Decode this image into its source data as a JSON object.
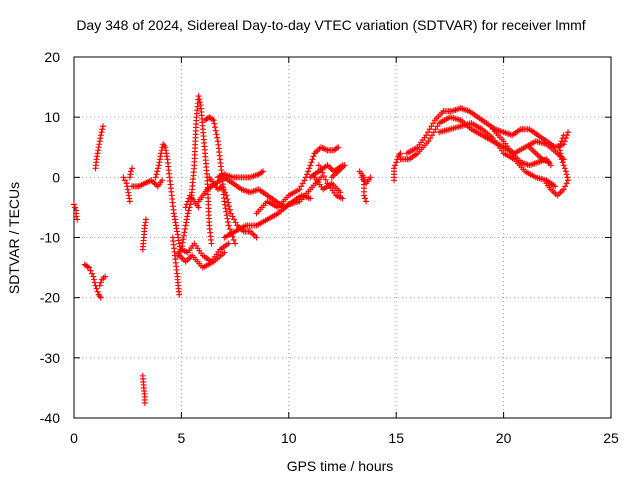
{
  "chart_data": {
    "type": "scatter",
    "title": "Day 348 of 2024, Sidereal Day-to-day VTEC variation (SDTVAR) for receiver lmmf",
    "xlabel": "GPS time / hours",
    "ylabel": "SDTVAR / TECUs",
    "xlim": [
      0,
      25
    ],
    "ylim": [
      -40,
      20
    ],
    "xticks": [
      0,
      5,
      10,
      15,
      20,
      25
    ],
    "yticks": [
      -40,
      -30,
      -20,
      -10,
      0,
      10,
      20
    ],
    "grid": true,
    "marker": "+",
    "color": "#ff0000",
    "series": [
      {
        "name": "tracks",
        "tracks": [
          [
            [
              0.0,
              -4.5
            ],
            [
              0.1,
              -5.5
            ],
            [
              0.1,
              -6.5
            ],
            [
              0.15,
              -7
            ]
          ],
          [
            [
              0.5,
              -14.5
            ],
            [
              0.7,
              -15
            ],
            [
              0.9,
              -16.5
            ],
            [
              1.0,
              -18
            ],
            [
              1.15,
              -19.5
            ],
            [
              1.25,
              -20
            ]
          ],
          [
            [
              1.2,
              -18
            ],
            [
              1.3,
              -17
            ],
            [
              1.45,
              -16.5
            ]
          ],
          [
            [
              1.0,
              1.5
            ],
            [
              1.05,
              3
            ],
            [
              1.15,
              5
            ],
            [
              1.25,
              7
            ],
            [
              1.35,
              8.5
            ]
          ],
          [
            [
              2.3,
              0
            ],
            [
              2.45,
              -1
            ],
            [
              2.5,
              -2
            ],
            [
              2.6,
              -4
            ]
          ],
          [
            [
              2.6,
              0
            ],
            [
              2.65,
              1
            ],
            [
              2.7,
              1.5
            ]
          ],
          [
            [
              2.7,
              -1.5
            ],
            [
              3.0,
              -1.5
            ],
            [
              3.3,
              -1
            ],
            [
              3.6,
              -0.5
            ],
            [
              3.9,
              -1.5
            ],
            [
              4.1,
              -0.5
            ]
          ],
          [
            [
              3.2,
              -12
            ],
            [
              3.25,
              -10
            ],
            [
              3.3,
              -8
            ],
            [
              3.35,
              -7
            ]
          ],
          [
            [
              3.2,
              -33
            ],
            [
              3.25,
              -35
            ],
            [
              3.3,
              -36.5
            ],
            [
              3.3,
              -37.5
            ]
          ],
          [
            [
              3.8,
              0
            ],
            [
              3.95,
              2
            ],
            [
              4.05,
              4
            ],
            [
              4.15,
              5.5
            ],
            [
              4.25,
              5
            ],
            [
              4.35,
              3
            ],
            [
              4.45,
              0
            ],
            [
              4.55,
              -3
            ],
            [
              4.65,
              -6
            ],
            [
              4.75,
              -8
            ],
            [
              4.85,
              -10
            ],
            [
              4.95,
              -12
            ]
          ],
          [
            [
              4.6,
              -10
            ],
            [
              4.7,
              -13
            ],
            [
              4.8,
              -16
            ],
            [
              4.85,
              -18
            ],
            [
              4.9,
              -19.5
            ]
          ],
          [
            [
              4.8,
              -13
            ],
            [
              5.0,
              -12
            ],
            [
              5.3,
              -12.5
            ],
            [
              5.6,
              -11
            ],
            [
              6.0,
              -13
            ],
            [
              6.4,
              -14
            ],
            [
              6.8,
              -12
            ],
            [
              7.2,
              -11
            ]
          ],
          [
            [
              4.9,
              -13
            ],
            [
              5.2,
              -14
            ],
            [
              5.5,
              -13
            ],
            [
              6.0,
              -15
            ],
            [
              6.5,
              -14
            ],
            [
              7.0,
              -12.5
            ]
          ],
          [
            [
              5.0,
              -12
            ],
            [
              5.2,
              -8
            ],
            [
              5.3,
              -6
            ],
            [
              5.45,
              -4
            ],
            [
              5.5,
              -2
            ],
            [
              5.6,
              2
            ],
            [
              5.65,
              6
            ],
            [
              5.7,
              10
            ],
            [
              5.8,
              13.5
            ],
            [
              5.9,
              12
            ],
            [
              6.0,
              8
            ],
            [
              6.1,
              4
            ],
            [
              6.2,
              0
            ],
            [
              6.25,
              -4
            ],
            [
              6.3,
              -8
            ],
            [
              6.4,
              -11
            ]
          ],
          [
            [
              5.2,
              -5
            ],
            [
              5.4,
              -3
            ],
            [
              5.6,
              -4
            ],
            [
              5.8,
              -5
            ]
          ],
          [
            [
              5.8,
              -4
            ],
            [
              6.0,
              -3
            ],
            [
              6.2,
              -2
            ],
            [
              6.6,
              -1
            ],
            [
              7.0,
              0
            ],
            [
              7.4,
              -1
            ],
            [
              7.8,
              -2
            ],
            [
              8.2,
              -2.5
            ],
            [
              8.6,
              -2
            ],
            [
              9.0,
              -3
            ],
            [
              9.4,
              -4
            ],
            [
              9.8,
              -5
            ],
            [
              10.2,
              -4
            ],
            [
              10.6,
              -3
            ],
            [
              11.0,
              -3.5
            ]
          ],
          [
            [
              6.1,
              9.5
            ],
            [
              6.3,
              10
            ],
            [
              6.5,
              9.5
            ],
            [
              6.7,
              6
            ],
            [
              6.8,
              3
            ],
            [
              6.9,
              0
            ],
            [
              7.0,
              -4
            ],
            [
              7.2,
              -8
            ],
            [
              7.5,
              -11
            ]
          ],
          [
            [
              6.3,
              0
            ],
            [
              6.5,
              -1
            ],
            [
              6.7,
              -2
            ],
            [
              6.9,
              -1.5
            ],
            [
              7.1,
              -3
            ],
            [
              7.3,
              -6
            ],
            [
              7.6,
              -8
            ],
            [
              7.9,
              -9
            ],
            [
              8.2,
              -9
            ],
            [
              8.5,
              -10
            ]
          ],
          [
            [
              6.7,
              0
            ],
            [
              7.0,
              0.5
            ],
            [
              7.4,
              0
            ],
            [
              7.8,
              0
            ],
            [
              8.2,
              0
            ],
            [
              8.6,
              0.5
            ],
            [
              8.8,
              1
            ]
          ],
          [
            [
              7.0,
              -10
            ],
            [
              7.5,
              -9
            ],
            [
              8.0,
              -8
            ],
            [
              8.5,
              -8
            ],
            [
              9.0,
              -7
            ],
            [
              9.5,
              -6
            ],
            [
              10.0,
              -4.5
            ],
            [
              10.5,
              -4
            ],
            [
              11.0,
              -2
            ],
            [
              11.5,
              0
            ]
          ],
          [
            [
              8.5,
              -6
            ],
            [
              9.0,
              -4
            ],
            [
              9.5,
              -5
            ],
            [
              10.0,
              -3
            ],
            [
              10.5,
              -2
            ],
            [
              10.8,
              0
            ],
            [
              11.0,
              2
            ],
            [
              11.2,
              4
            ],
            [
              11.5,
              5
            ],
            [
              11.8,
              4.5
            ],
            [
              12.1,
              4.5
            ],
            [
              12.3,
              5
            ]
          ],
          [
            [
              11.0,
              0
            ],
            [
              11.4,
              1
            ],
            [
              11.8,
              2
            ],
            [
              12.1,
              1
            ],
            [
              12.5,
              2
            ]
          ],
          [
            [
              11.2,
              0
            ],
            [
              11.6,
              -2
            ],
            [
              12.0,
              -1
            ],
            [
              12.4,
              -2.5
            ]
          ],
          [
            [
              11.4,
              2
            ],
            [
              11.8,
              -1
            ],
            [
              12.2,
              -3
            ],
            [
              12.5,
              -3.5
            ]
          ],
          [
            [
              12.0,
              0
            ],
            [
              12.3,
              1
            ],
            [
              12.6,
              2
            ]
          ],
          [
            [
              13.3,
              1
            ],
            [
              13.5,
              0
            ],
            [
              13.5,
              -3
            ],
            [
              13.6,
              -4
            ]
          ],
          [
            [
              13.4,
              0
            ],
            [
              13.6,
              -1
            ],
            [
              13.8,
              0
            ]
          ],
          [
            [
              14.9,
              -0.5
            ],
            [
              14.9,
              1.5
            ],
            [
              15.0,
              2.5
            ],
            [
              15.1,
              3.5
            ],
            [
              15.2,
              4
            ]
          ],
          [
            [
              15.2,
              3
            ],
            [
              15.6,
              3
            ],
            [
              16.0,
              4
            ],
            [
              16.5,
              6
            ],
            [
              17.0,
              9
            ],
            [
              17.5,
              10
            ],
            [
              18.0,
              9.5
            ],
            [
              18.5,
              8
            ],
            [
              19.0,
              7
            ],
            [
              19.5,
              6
            ],
            [
              20.0,
              5
            ],
            [
              20.5,
              4
            ],
            [
              21.0,
              5
            ],
            [
              21.5,
              6
            ],
            [
              22.0,
              5.5
            ],
            [
              22.5,
              4
            ],
            [
              22.8,
              3
            ]
          ],
          [
            [
              15.5,
              4
            ],
            [
              16.0,
              5
            ],
            [
              16.4,
              7
            ],
            [
              16.8,
              9.5
            ],
            [
              17.2,
              11
            ],
            [
              17.6,
              11
            ],
            [
              18.0,
              11.5
            ],
            [
              18.4,
              11
            ],
            [
              18.8,
              10
            ],
            [
              19.2,
              9
            ],
            [
              19.6,
              8
            ],
            [
              20.0,
              7.5
            ],
            [
              20.4,
              7
            ],
            [
              20.8,
              8
            ],
            [
              21.2,
              8
            ],
            [
              21.6,
              7
            ],
            [
              22.0,
              6
            ],
            [
              22.4,
              5
            ],
            [
              22.8,
              5.5
            ],
            [
              23.0,
              7.5
            ]
          ],
          [
            [
              17.0,
              7.5
            ],
            [
              17.5,
              8
            ],
            [
              18.0,
              8.5
            ],
            [
              18.5,
              9
            ],
            [
              19.0,
              8
            ],
            [
              19.5,
              6.5
            ],
            [
              20.0,
              4
            ],
            [
              20.5,
              3
            ],
            [
              21.0,
              1
            ],
            [
              21.5,
              0
            ],
            [
              22.0,
              -0.5
            ],
            [
              22.4,
              -1.5
            ]
          ],
          [
            [
              19.5,
              8
            ],
            [
              20.0,
              6
            ],
            [
              20.4,
              4
            ],
            [
              20.8,
              2.5
            ],
            [
              21.2,
              2
            ],
            [
              21.6,
              2.5
            ],
            [
              22.0,
              3
            ],
            [
              22.2,
              2
            ]
          ],
          [
            [
              22.0,
              -1
            ],
            [
              22.2,
              -2
            ],
            [
              22.5,
              -3
            ],
            [
              22.8,
              -2
            ],
            [
              23.0,
              -0.5
            ],
            [
              22.9,
              1
            ],
            [
              22.7,
              3
            ],
            [
              22.6,
              5
            ],
            [
              22.8,
              7
            ]
          ],
          [
            [
              21.2,
              5
            ],
            [
              21.5,
              4
            ],
            [
              21.8,
              3
            ],
            [
              22.1,
              2.5
            ]
          ]
        ]
      }
    ]
  }
}
